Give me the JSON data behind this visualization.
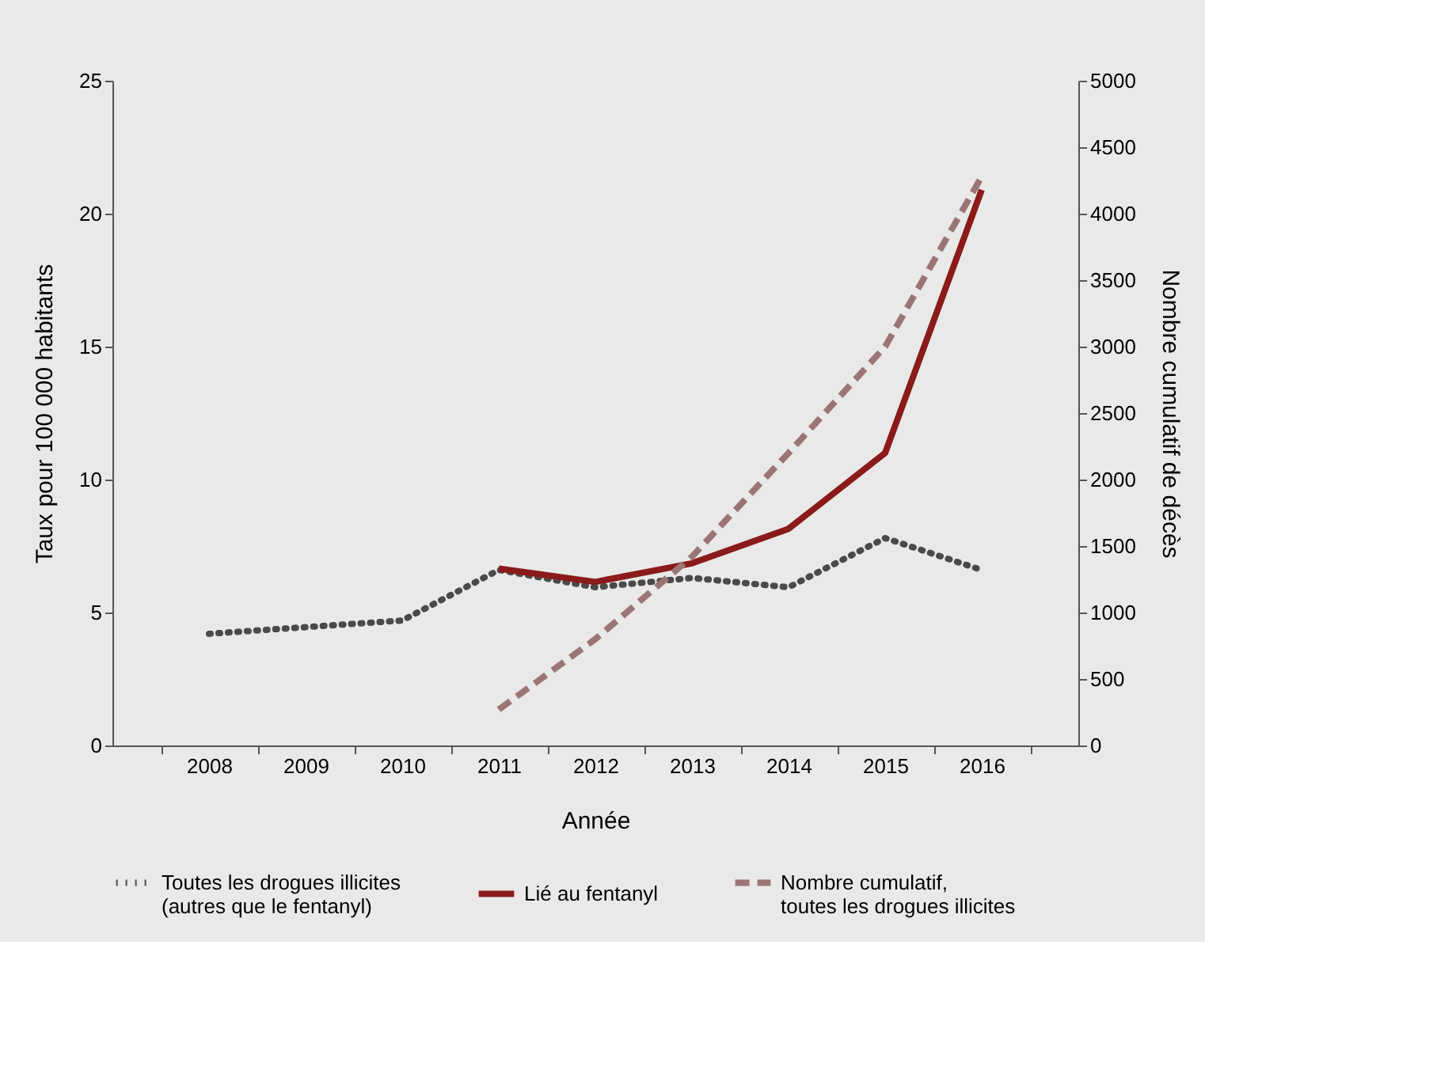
{
  "chart_data": {
    "type": "line",
    "xlabel": "Année",
    "ylabel": "Taux pour 100 000 habitants",
    "y2label": "Nombre cumulatif de décès",
    "categories": [
      "2008",
      "2009",
      "2010",
      "2011",
      "2012",
      "2013",
      "2014",
      "2015",
      "2016"
    ],
    "ylim": [
      0,
      25
    ],
    "yticks": [
      0,
      5,
      10,
      15,
      20,
      25
    ],
    "y2lim": [
      0,
      5000
    ],
    "y2ticks": [
      0,
      500,
      1000,
      1500,
      2000,
      2500,
      3000,
      3500,
      4000,
      4500,
      5000
    ],
    "grid": false,
    "legend": "bottom",
    "series": [
      {
        "name": "Toutes les drogues illicites\n(autres que le fentanyl)",
        "color": "#4a4a4a",
        "line_style": "dotted",
        "values": [
          4.2,
          4.45,
          4.7,
          6.6,
          5.95,
          6.3,
          5.95,
          7.8,
          6.6
        ]
      },
      {
        "name": "Lié au fentanyl",
        "color": "#8b1a1a",
        "line_style": "solid",
        "values": [
          null,
          null,
          null,
          6.65,
          6.15,
          6.85,
          8.15,
          11.0,
          20.9
        ]
      },
      {
        "name": "Nombre cumulatif,\ntoutes les drogues illicites",
        "color": "#9b7575",
        "line_style": "dashed",
        "axis": "y2",
        "values": [
          null,
          null,
          null,
          270,
          800,
          1420,
          2200,
          3000,
          4280
        ]
      }
    ]
  }
}
